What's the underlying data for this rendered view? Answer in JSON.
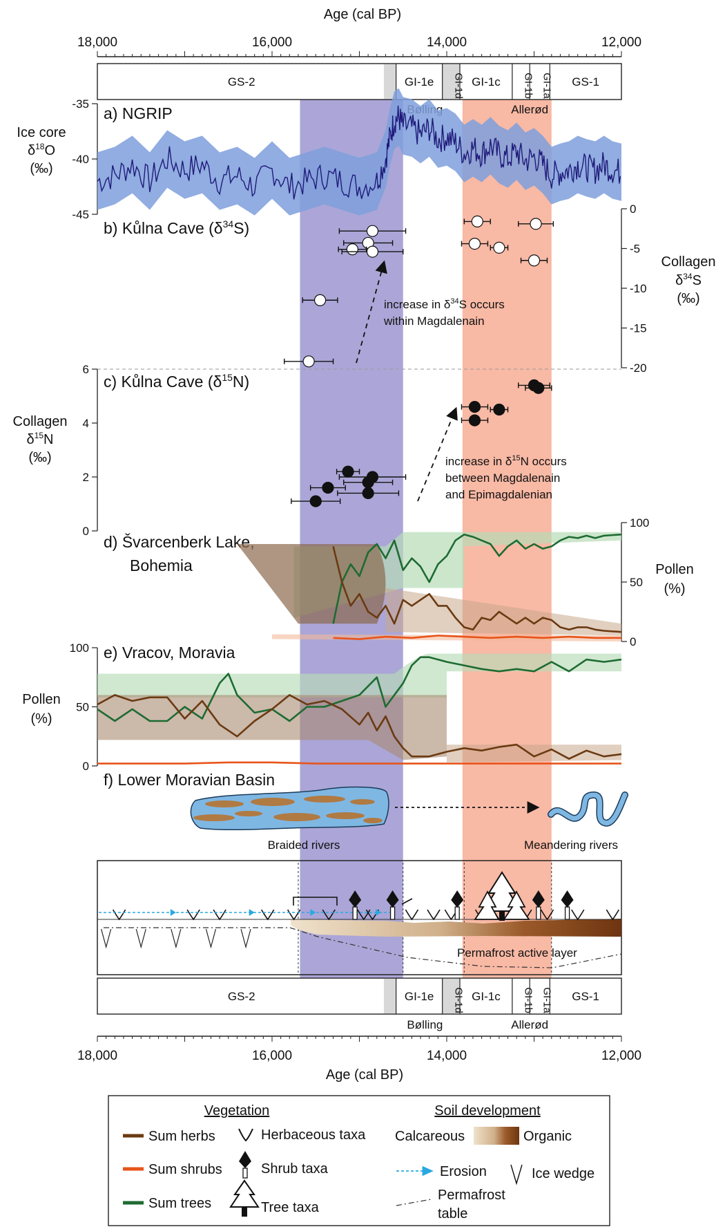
{
  "axis": {
    "label": "Age (cal BP)",
    "ticks": [
      18000,
      16000,
      14000,
      12000
    ],
    "tick_labels": [
      "18,000",
      "16,000",
      "14,000",
      "12,000"
    ],
    "range": [
      18000,
      12000
    ]
  },
  "stratigraphy": {
    "units": [
      {
        "label": "GS-2",
        "from": 18000,
        "to": 14700
      },
      {
        "label": "GI-1e",
        "from": 14580,
        "to": 14050
      },
      {
        "label": "GI-1d",
        "from": 14050,
        "to": 13850
      },
      {
        "label": "GI-1c",
        "from": 13850,
        "to": 13250
      },
      {
        "label": "GI-1b",
        "from": 13250,
        "to": 13050
      },
      {
        "label": "GI-1a",
        "from": 13050,
        "to": 12820
      },
      {
        "label": "GS-1",
        "from": 12820,
        "to": 12000
      }
    ],
    "interstadial_labels": [
      {
        "label": "Bølling",
        "at": 14250
      },
      {
        "label": "Allerød",
        "at": 13050
      }
    ]
  },
  "highlights": {
    "purple": {
      "from": 15680,
      "to": 14500,
      "color": "#8f88c9"
    },
    "salmon": {
      "from": 13820,
      "to": 12800,
      "color": "#f6a88e"
    }
  },
  "panels": {
    "a": {
      "title": "a) NGRIP",
      "ylabel": [
        "Ice core",
        "δ18O",
        "(‰)"
      ],
      "ticks": [
        "-35",
        "-40",
        "-45"
      ]
    },
    "b": {
      "title": "b) Kůlna Cave (δ34S)",
      "ylabel": [
        "Collagen",
        "δ34S",
        "(‰)"
      ],
      "ticks": [
        "0",
        "-5",
        "-10",
        "-15",
        "-20"
      ],
      "annotation": [
        "increase in δ34S occurs",
        "within Magdalenain"
      ]
    },
    "c": {
      "title": "c) Kůlna Cave (δ15N)",
      "ylabel": [
        "Collagen",
        "δ15N",
        "(‰)"
      ],
      "ticks": [
        "6",
        "4",
        "2",
        "0"
      ],
      "annotation": [
        "increase in δ15N occurs",
        "between Magdalenain",
        "and Epimagdalenian"
      ]
    },
    "d": {
      "title": [
        "d) Švarcenberk Lake,",
        "Bohemia"
      ],
      "ylabel": [
        "Pollen",
        "(%)"
      ],
      "ticks": [
        "100",
        "50",
        "0"
      ]
    },
    "e": {
      "title": "e) Vracov, Moravia",
      "ylabel": [
        "Pollen",
        "(%)"
      ],
      "ticks": [
        "100",
        "50",
        "0"
      ]
    },
    "f": {
      "title": "f) Lower Moravian Basin",
      "left_label": "Braided rivers",
      "right_label": "Meandering rivers",
      "permafrost_label": "Permafrost active layer"
    }
  },
  "legend": {
    "vegetation_title": "Vegetation",
    "soil_title": "Soil development",
    "herbs": "Sum herbs",
    "shrubs": "Sum shrubs",
    "trees": "Sum trees",
    "herb_taxa": "Herbaceous taxa",
    "shrub_taxa": "Shrub taxa",
    "tree_taxa": "Tree taxa",
    "calcareous": "Calcareous",
    "organic": "Organic",
    "erosion": "Erosion",
    "ice_wedge": "Ice wedge",
    "permafrost_table": [
      "Permafrost",
      "table"
    ]
  },
  "colors": {
    "herbs": "#6b3a12",
    "shrubs": "#e8541a",
    "trees": "#1e6b32",
    "ngrip_line": "#1f1a7a",
    "ngrip_band": "#7e9fdc",
    "erosion": "#2aa8e0"
  },
  "chart_data": [
    {
      "panel": "a",
      "type": "line",
      "title": "a) NGRIP",
      "xlabel": "Age (cal BP)",
      "ylabel": "Ice core δ18O (‰)",
      "ylim": [
        -45,
        -35
      ],
      "xlim": [
        18000,
        12000
      ],
      "series": [
        {
          "x": [
            18000,
            17800,
            17600,
            17400,
            17200,
            17000,
            16800,
            16600,
            16400,
            16200,
            16000,
            15800,
            15600,
            15400,
            15200,
            15000,
            14800,
            14700,
            14650,
            14600,
            14550,
            14500,
            14400,
            14300,
            14200,
            14100,
            14000,
            13900,
            13800,
            13700,
            13600,
            13500,
            13400,
            13300,
            13200,
            13100,
            13000,
            12900,
            12800,
            12700,
            12600,
            12500,
            12400,
            12300,
            12200,
            12100,
            12000
          ],
          "y": [
            -42,
            -41.5,
            -40.5,
            -42,
            -40,
            -41,
            -40.5,
            -42,
            -41.5,
            -42.5,
            -41,
            -42.5,
            -42,
            -41.5,
            -42,
            -42.5,
            -42,
            -40,
            -38,
            -36.5,
            -36.2,
            -37,
            -37.2,
            -37.8,
            -37.2,
            -38.2,
            -38,
            -38.5,
            -39.5,
            -39,
            -39.5,
            -38.8,
            -39.6,
            -40,
            -39.3,
            -40.2,
            -39.8,
            -40.5,
            -41.5,
            -41.2,
            -41,
            -40.5,
            -40.8,
            -41,
            -40.5,
            -41,
            -41.2
          ]
        }
      ]
    },
    {
      "panel": "b",
      "type": "scatter",
      "title": "b) Kůlna Cave (δ34S)",
      "ylabel": "Collagen δ34S (‰)",
      "ylim": [
        -20,
        0
      ],
      "xlim": [
        18000,
        12000
      ],
      "points": [
        {
          "x": 15580,
          "y": -19.2,
          "xerr": 280
        },
        {
          "x": 15450,
          "y": -11.5,
          "xerr": 200
        },
        {
          "x": 14850,
          "y": -2.8,
          "xerr": 380
        },
        {
          "x": 14900,
          "y": -4.3,
          "xerr": 280
        },
        {
          "x": 15080,
          "y": -5.1,
          "xerr": 160
        },
        {
          "x": 14850,
          "y": -5.4,
          "xerr": 350
        },
        {
          "x": 13650,
          "y": -1.6,
          "xerr": 150
        },
        {
          "x": 13680,
          "y": -4.4,
          "xerr": 150
        },
        {
          "x": 13400,
          "y": -4.9,
          "xerr": 100
        },
        {
          "x": 12980,
          "y": -1.9,
          "xerr": 200
        },
        {
          "x": 13000,
          "y": -6.5,
          "xerr": 150
        }
      ]
    },
    {
      "panel": "c",
      "type": "scatter",
      "title": "c) Kůlna Cave (δ15N)",
      "ylabel": "Collagen δ15N (‰)",
      "ylim": [
        0,
        6
      ],
      "xlim": [
        18000,
        12000
      ],
      "points": [
        {
          "x": 15130,
          "y": 2.2,
          "xerr": 130
        },
        {
          "x": 14850,
          "y": 2.0,
          "xerr": 380
        },
        {
          "x": 14900,
          "y": 1.8,
          "xerr": 280
        },
        {
          "x": 15360,
          "y": 1.6,
          "xerr": 200
        },
        {
          "x": 14900,
          "y": 1.4,
          "xerr": 350
        },
        {
          "x": 15500,
          "y": 1.1,
          "xerr": 280
        },
        {
          "x": 13680,
          "y": 4.6,
          "xerr": 150
        },
        {
          "x": 13400,
          "y": 4.5,
          "xerr": 100
        },
        {
          "x": 13680,
          "y": 4.1,
          "xerr": 150
        },
        {
          "x": 13000,
          "y": 5.4,
          "xerr": 180
        },
        {
          "x": 12950,
          "y": 5.3,
          "xerr": 150
        }
      ]
    },
    {
      "panel": "d",
      "type": "line",
      "title": "d) Švarcenberk Lake, Bohemia",
      "ylabel": "Pollen (%)",
      "ylim": [
        0,
        100
      ],
      "xlim": [
        18000,
        12000
      ],
      "series": [
        {
          "name": "Sum trees",
          "x": [
            15300,
            15200,
            15100,
            15000,
            14900,
            14800,
            14700,
            14600,
            14500,
            14400,
            14300,
            14200,
            14100,
            14000,
            13900,
            13800,
            13700,
            13600,
            13500,
            13400,
            13300,
            13200,
            13100,
            13000,
            12900,
            12800,
            12700,
            12600,
            12500,
            12400,
            12300,
            12200,
            12000
          ],
          "y": [
            15,
            50,
            65,
            55,
            75,
            82,
            70,
            85,
            60,
            70,
            63,
            50,
            65,
            72,
            85,
            90,
            88,
            85,
            82,
            72,
            80,
            85,
            78,
            82,
            78,
            80,
            85,
            88,
            87,
            89,
            87,
            89,
            90
          ]
        },
        {
          "name": "Sum herbs",
          "x": [
            15300,
            15200,
            15100,
            15000,
            14900,
            14800,
            14700,
            14600,
            14500,
            14400,
            14300,
            14200,
            14100,
            14000,
            13900,
            13800,
            13700,
            13600,
            13500,
            13400,
            13300,
            13200,
            13100,
            13000,
            12900,
            12800,
            12700,
            12600,
            12500,
            12400,
            12300,
            12200,
            12000
          ],
          "y": [
            80,
            50,
            30,
            40,
            25,
            20,
            30,
            15,
            35,
            30,
            35,
            40,
            30,
            30,
            20,
            12,
            10,
            20,
            18,
            25,
            20,
            15,
            20,
            15,
            20,
            18,
            12,
            10,
            12,
            12,
            10,
            9,
            8
          ]
        },
        {
          "name": "Sum shrubs",
          "x": [
            15300,
            15000,
            14700,
            14400,
            14100,
            13800,
            13500,
            13200,
            12900,
            12600,
            12300,
            12000
          ],
          "y": [
            3,
            2,
            4,
            3,
            5,
            4,
            3,
            4,
            3,
            4,
            3,
            3
          ]
        }
      ]
    },
    {
      "panel": "e",
      "type": "line",
      "title": "e) Vracov, Moravia",
      "ylabel": "Pollen (%)",
      "ylim": [
        0,
        100
      ],
      "xlim": [
        18000,
        12000
      ],
      "series": [
        {
          "name": "Sum trees",
          "x": [
            18000,
            17800,
            17600,
            17400,
            17200,
            17000,
            16800,
            16600,
            16500,
            16400,
            16200,
            16000,
            15800,
            15600,
            15400,
            15200,
            15000,
            14800,
            14700,
            14500,
            14400,
            14300,
            14200,
            14000,
            13800,
            13600,
            13400,
            13200,
            13000,
            12800,
            12600,
            12400,
            12200,
            12000
          ],
          "y": [
            48,
            38,
            48,
            38,
            38,
            50,
            40,
            70,
            78,
            60,
            45,
            48,
            38,
            50,
            50,
            55,
            60,
            75,
            50,
            70,
            85,
            92,
            92,
            88,
            85,
            82,
            80,
            82,
            80,
            88,
            80,
            90,
            88,
            90
          ]
        },
        {
          "name": "Sum herbs",
          "x": [
            18000,
            17800,
            17600,
            17400,
            17200,
            17000,
            16800,
            16600,
            16400,
            16200,
            16000,
            15800,
            15600,
            15400,
            15200,
            15000,
            14900,
            14800,
            14700,
            14600,
            14500,
            14400,
            14300,
            14200,
            14000,
            13800,
            13600,
            13400,
            13200,
            13000,
            12800,
            12600,
            12400,
            12200,
            12000
          ],
          "y": [
            52,
            60,
            55,
            58,
            58,
            40,
            55,
            35,
            25,
            38,
            48,
            60,
            52,
            55,
            48,
            35,
            45,
            30,
            42,
            25,
            15,
            8,
            8,
            8,
            12,
            15,
            13,
            16,
            18,
            8,
            14,
            6,
            13,
            8,
            10
          ]
        },
        {
          "name": "Sum shrubs",
          "x": [
            18000,
            17500,
            17000,
            16500,
            16000,
            15500,
            15000,
            14500,
            14000,
            13500,
            13000,
            12500,
            12000
          ],
          "y": [
            2,
            2,
            2,
            3,
            3,
            2,
            2,
            2,
            2,
            2,
            2,
            2,
            2
          ]
        }
      ]
    }
  ]
}
